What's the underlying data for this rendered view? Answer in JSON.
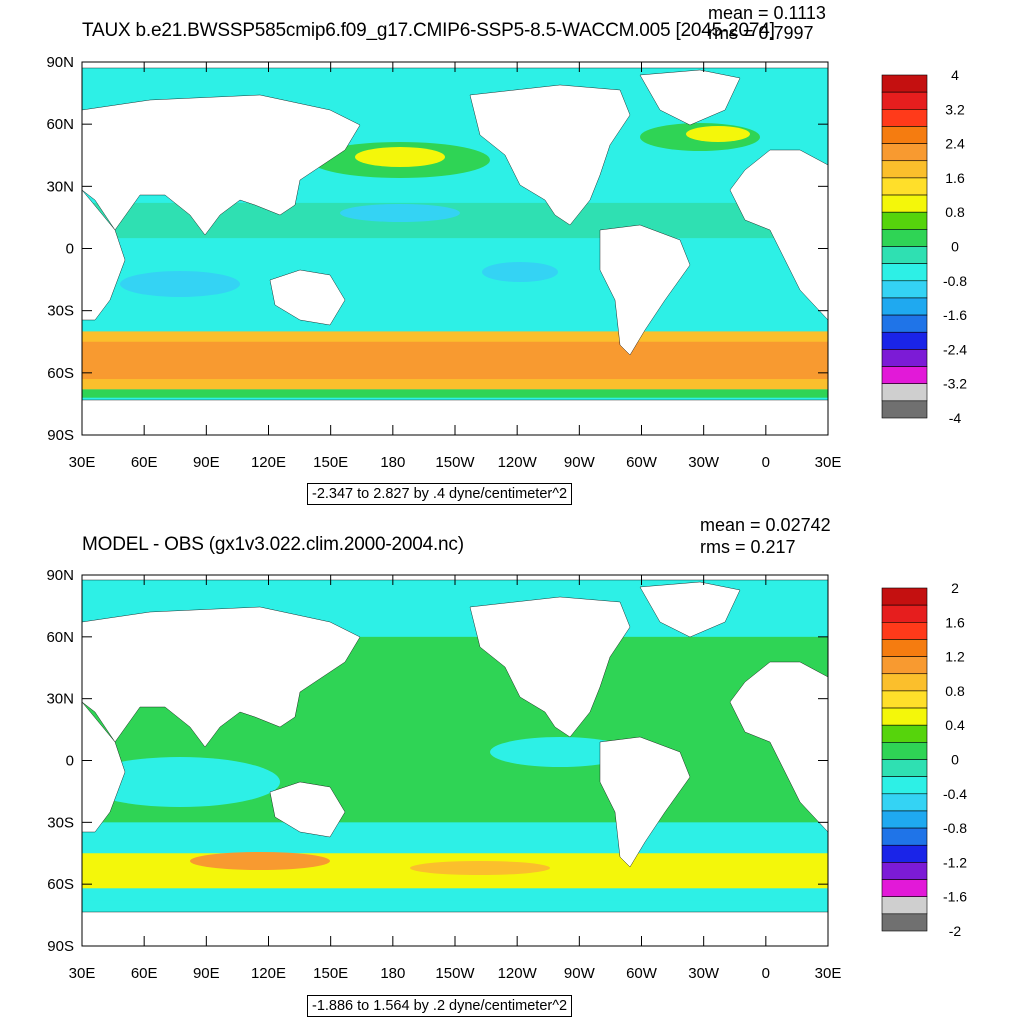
{
  "panels": [
    {
      "title": "TAUX b.e21.BWSSP585cmip6.f09_g17.CMIP6-SSP5-8.5-WACCM.005 [2045-2074]",
      "mean": "mean = 0.1113",
      "rms": "rms = 0.7997",
      "contour_info": "-2.347 to 2.827 by .4 dyne/centimeter^2",
      "colorbar_labels": [
        "4",
        "3.2",
        "2.4",
        "1.6",
        "0.8",
        "0",
        "-0.8",
        "-1.6",
        "-2.4",
        "-3.2",
        "-4"
      ],
      "colorbar_colors": [
        "#c41010",
        "#e61e1e",
        "#ff3a1a",
        "#f57c10",
        "#f89a30",
        "#fbbf2c",
        "#ffdf2a",
        "#f4f70a",
        "#56d40c",
        "#2fd455",
        "#2fe0b2",
        "#2df0e6",
        "#34d3f4",
        "#1fa9f0",
        "#1f74e8",
        "#1a24e8",
        "#7c1bd6",
        "#e219d8",
        "#cfcfcf",
        "#707070"
      ]
    },
    {
      "title": "MODEL - OBS (gx1v3.022.clim.2000-2004.nc)",
      "mean": "mean = 0.02742",
      "rms": "rms = 0.217",
      "contour_info": "-1.886 to 1.564 by .2 dyne/centimeter^2",
      "colorbar_labels": [
        "2",
        "1.6",
        "1.2",
        "0.8",
        "0.4",
        "0",
        "-0.4",
        "-0.8",
        "-1.2",
        "-1.6",
        "-2"
      ],
      "colorbar_colors": [
        "#c41010",
        "#e61e1e",
        "#ff3a1a",
        "#f57c10",
        "#f89a30",
        "#fbbf2c",
        "#ffdf2a",
        "#f4f70a",
        "#56d40c",
        "#2fd455",
        "#2fe0b2",
        "#2df0e6",
        "#34d3f4",
        "#1fa9f0",
        "#1f74e8",
        "#1a24e8",
        "#7c1bd6",
        "#e219d8",
        "#cfcfcf",
        "#707070"
      ]
    }
  ],
  "lat_labels": [
    "90N",
    "60N",
    "30N",
    "0",
    "30S",
    "60S",
    "90S"
  ],
  "lon_labels": [
    "30E",
    "60E",
    "90E",
    "120E",
    "150E",
    "180",
    "150W",
    "120W",
    "90W",
    "60W",
    "30W",
    "0",
    "30E"
  ],
  "colors": {
    "ocean_band_cyan": "#2df0e6",
    "ocean_green": "#2fd455",
    "ocean_blue": "#34d3f4",
    "yellow": "#f4f70a",
    "orange": "#f89a30",
    "land": "#ffffff"
  }
}
